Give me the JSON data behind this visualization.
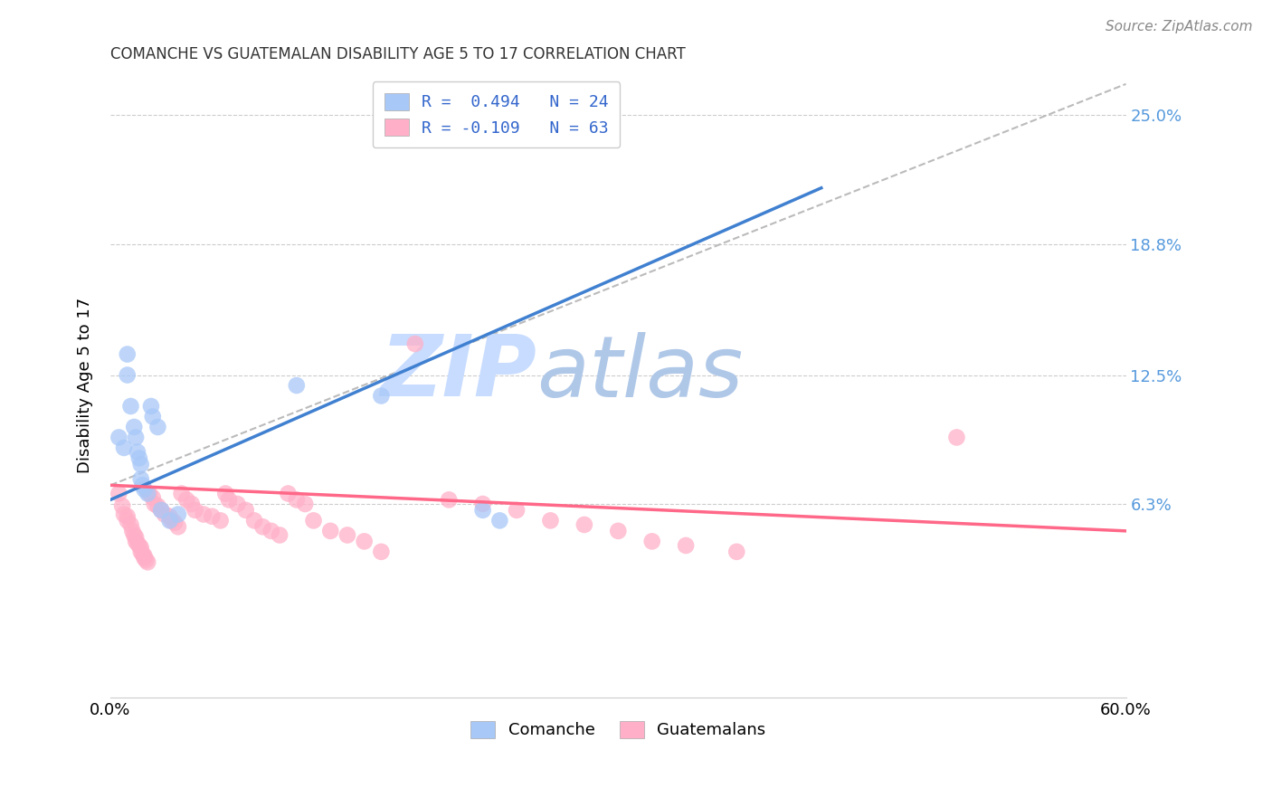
{
  "title": "COMANCHE VS GUATEMALAN DISABILITY AGE 5 TO 17 CORRELATION CHART",
  "source": "Source: ZipAtlas.com",
  "ylabel": "Disability Age 5 to 17",
  "xlim": [
    0.0,
    0.6
  ],
  "ylim": [
    -0.03,
    0.27
  ],
  "xtick_positions": [
    0.0,
    0.1,
    0.2,
    0.3,
    0.4,
    0.5,
    0.6
  ],
  "xticklabels": [
    "0.0%",
    "",
    "",
    "",
    "",
    "",
    "60.0%"
  ],
  "ytick_positions": [
    0.063,
    0.125,
    0.188,
    0.25
  ],
  "ytick_labels": [
    "6.3%",
    "12.5%",
    "18.8%",
    "25.0%"
  ],
  "comanche_color": "#A8C8F8",
  "guatemalan_color": "#FFB0C8",
  "comanche_line_color": "#4080D0",
  "guatemalan_line_color": "#FF6888",
  "diagonal_line_color": "#BBBBBB",
  "watermark_zip": "ZIP",
  "watermark_atlas": "atlas",
  "watermark_color_zip": "#C8DCFF",
  "watermark_color_atlas": "#B0C8E8",
  "comanche_line": [
    [
      0.0,
      0.065
    ],
    [
      0.42,
      0.215
    ]
  ],
  "guatemalan_line": [
    [
      0.0,
      0.072
    ],
    [
      0.6,
      0.05
    ]
  ],
  "diagonal_line": [
    [
      0.0,
      0.072
    ],
    [
      0.6,
      0.265
    ]
  ],
  "legend_label_1": "R =  0.494   N = 24",
  "legend_label_2": "R = -0.109   N = 63",
  "comanche_scatter": [
    [
      0.005,
      0.095
    ],
    [
      0.008,
      0.09
    ],
    [
      0.01,
      0.135
    ],
    [
      0.01,
      0.125
    ],
    [
      0.012,
      0.11
    ],
    [
      0.014,
      0.1
    ],
    [
      0.015,
      0.095
    ],
    [
      0.016,
      0.088
    ],
    [
      0.017,
      0.085
    ],
    [
      0.018,
      0.082
    ],
    [
      0.018,
      0.075
    ],
    [
      0.019,
      0.072
    ],
    [
      0.02,
      0.07
    ],
    [
      0.022,
      0.068
    ],
    [
      0.024,
      0.11
    ],
    [
      0.025,
      0.105
    ],
    [
      0.028,
      0.1
    ],
    [
      0.03,
      0.06
    ],
    [
      0.035,
      0.055
    ],
    [
      0.04,
      0.058
    ],
    [
      0.11,
      0.12
    ],
    [
      0.16,
      0.115
    ],
    [
      0.22,
      0.06
    ],
    [
      0.23,
      0.055
    ]
  ],
  "guatemalan_scatter": [
    [
      0.005,
      0.068
    ],
    [
      0.007,
      0.062
    ],
    [
      0.008,
      0.058
    ],
    [
      0.01,
      0.057
    ],
    [
      0.01,
      0.055
    ],
    [
      0.012,
      0.053
    ],
    [
      0.013,
      0.05
    ],
    [
      0.014,
      0.048
    ],
    [
      0.015,
      0.047
    ],
    [
      0.015,
      0.045
    ],
    [
      0.016,
      0.044
    ],
    [
      0.017,
      0.043
    ],
    [
      0.018,
      0.042
    ],
    [
      0.018,
      0.04
    ],
    [
      0.019,
      0.039
    ],
    [
      0.02,
      0.038
    ],
    [
      0.02,
      0.037
    ],
    [
      0.021,
      0.036
    ],
    [
      0.022,
      0.035
    ],
    [
      0.023,
      0.068
    ],
    [
      0.025,
      0.066
    ],
    [
      0.026,
      0.063
    ],
    [
      0.028,
      0.062
    ],
    [
      0.03,
      0.06
    ],
    [
      0.032,
      0.058
    ],
    [
      0.035,
      0.057
    ],
    [
      0.036,
      0.055
    ],
    [
      0.038,
      0.054
    ],
    [
      0.04,
      0.052
    ],
    [
      0.042,
      0.068
    ],
    [
      0.045,
      0.065
    ],
    [
      0.048,
      0.063
    ],
    [
      0.05,
      0.06
    ],
    [
      0.055,
      0.058
    ],
    [
      0.06,
      0.057
    ],
    [
      0.065,
      0.055
    ],
    [
      0.068,
      0.068
    ],
    [
      0.07,
      0.065
    ],
    [
      0.075,
      0.063
    ],
    [
      0.08,
      0.06
    ],
    [
      0.085,
      0.055
    ],
    [
      0.09,
      0.052
    ],
    [
      0.095,
      0.05
    ],
    [
      0.1,
      0.048
    ],
    [
      0.105,
      0.068
    ],
    [
      0.11,
      0.065
    ],
    [
      0.115,
      0.063
    ],
    [
      0.12,
      0.055
    ],
    [
      0.13,
      0.05
    ],
    [
      0.14,
      0.048
    ],
    [
      0.15,
      0.045
    ],
    [
      0.16,
      0.04
    ],
    [
      0.18,
      0.14
    ],
    [
      0.2,
      0.065
    ],
    [
      0.22,
      0.063
    ],
    [
      0.24,
      0.06
    ],
    [
      0.26,
      0.055
    ],
    [
      0.28,
      0.053
    ],
    [
      0.3,
      0.05
    ],
    [
      0.32,
      0.045
    ],
    [
      0.34,
      0.043
    ],
    [
      0.37,
      0.04
    ],
    [
      0.5,
      0.095
    ]
  ]
}
